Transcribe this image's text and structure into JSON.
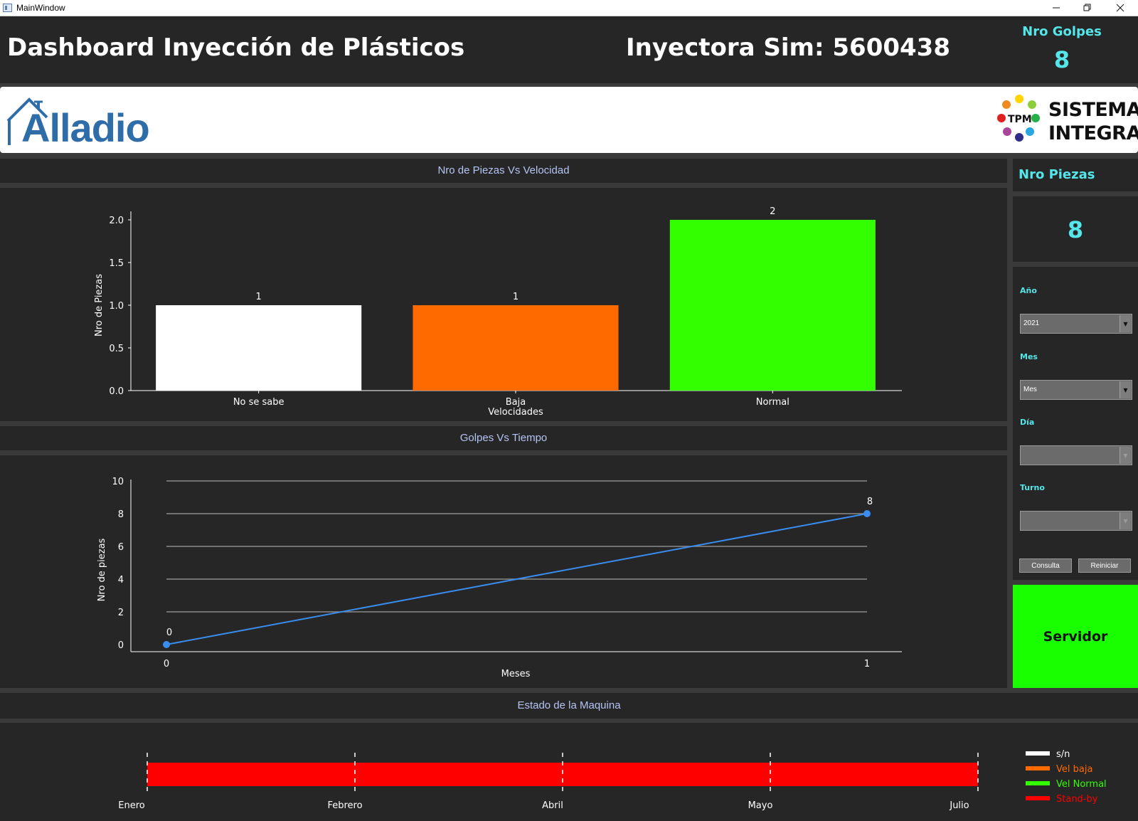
{
  "window": {
    "title": "MainWindow"
  },
  "header": {
    "title": "Dashboard Inyección de Plásticos",
    "machine": "Inyectora Sim: 5600438",
    "golpes_label": "Nro Golpes",
    "golpes_value": "8"
  },
  "logos": {
    "alladio": "Alladio",
    "sistema_line1": "SISTEMA",
    "sistema_line2": "INTEGRA",
    "tpm": "TPM"
  },
  "sidebar": {
    "piezas_label": "Nro Piezas",
    "piezas_value": "8",
    "year_label": "Año",
    "year_value": "2021",
    "month_label": "Mes",
    "month_value": "Mes",
    "day_label": "Día",
    "day_value": "",
    "shift_label": "Turno",
    "shift_value": "",
    "consulta_label": "Consulta",
    "reiniciar_label": "Reiniciar",
    "server_label": "Servidor",
    "server_color": "#1aff00"
  },
  "panels": {
    "bar_title": "Nro de Piezas Vs Velocidad",
    "line_title": "Golpes Vs Tiempo",
    "state_title": "Estado de la Maquina"
  },
  "chart_data": [
    {
      "type": "bar",
      "categories": [
        "No se sabe",
        "Baja",
        "Normal"
      ],
      "values": [
        1,
        1,
        2
      ],
      "colors": [
        "#ffffff",
        "#ff6a00",
        "#33ff00"
      ],
      "data_labels": [
        "1",
        "1",
        "2"
      ],
      "xlabel": "Velocidades",
      "ylabel": "Nro de Piezas",
      "ylim": [
        0,
        2
      ],
      "yticks": [
        "0.0",
        "0.5",
        "1.0",
        "1.5",
        "2.0"
      ],
      "grid": false
    },
    {
      "type": "line",
      "x": [
        0,
        1
      ],
      "values": [
        0,
        8
      ],
      "data_labels": [
        "0",
        "8"
      ],
      "xticks": [
        "0",
        "1"
      ],
      "yticks": [
        "0",
        "2",
        "4",
        "6",
        "8",
        "10"
      ],
      "xlabel": "Meses",
      "ylabel": "Nro de piezas",
      "ylim": [
        0,
        10
      ],
      "color": "#3a8df0",
      "grid": true
    },
    {
      "type": "area",
      "xticks": [
        "Enero",
        "Febrero",
        "Abril",
        "Mayo",
        "Julio"
      ],
      "bar_color": "#ff0000",
      "legend": [
        {
          "name": "s/n",
          "color": "#ffffff"
        },
        {
          "name": "Vel baja",
          "color": "#ff6a00"
        },
        {
          "name": "Vel Normal",
          "color": "#33ff00"
        },
        {
          "name": "Stand-by",
          "color": "#ff0000"
        }
      ],
      "legend_position": "right"
    }
  ]
}
